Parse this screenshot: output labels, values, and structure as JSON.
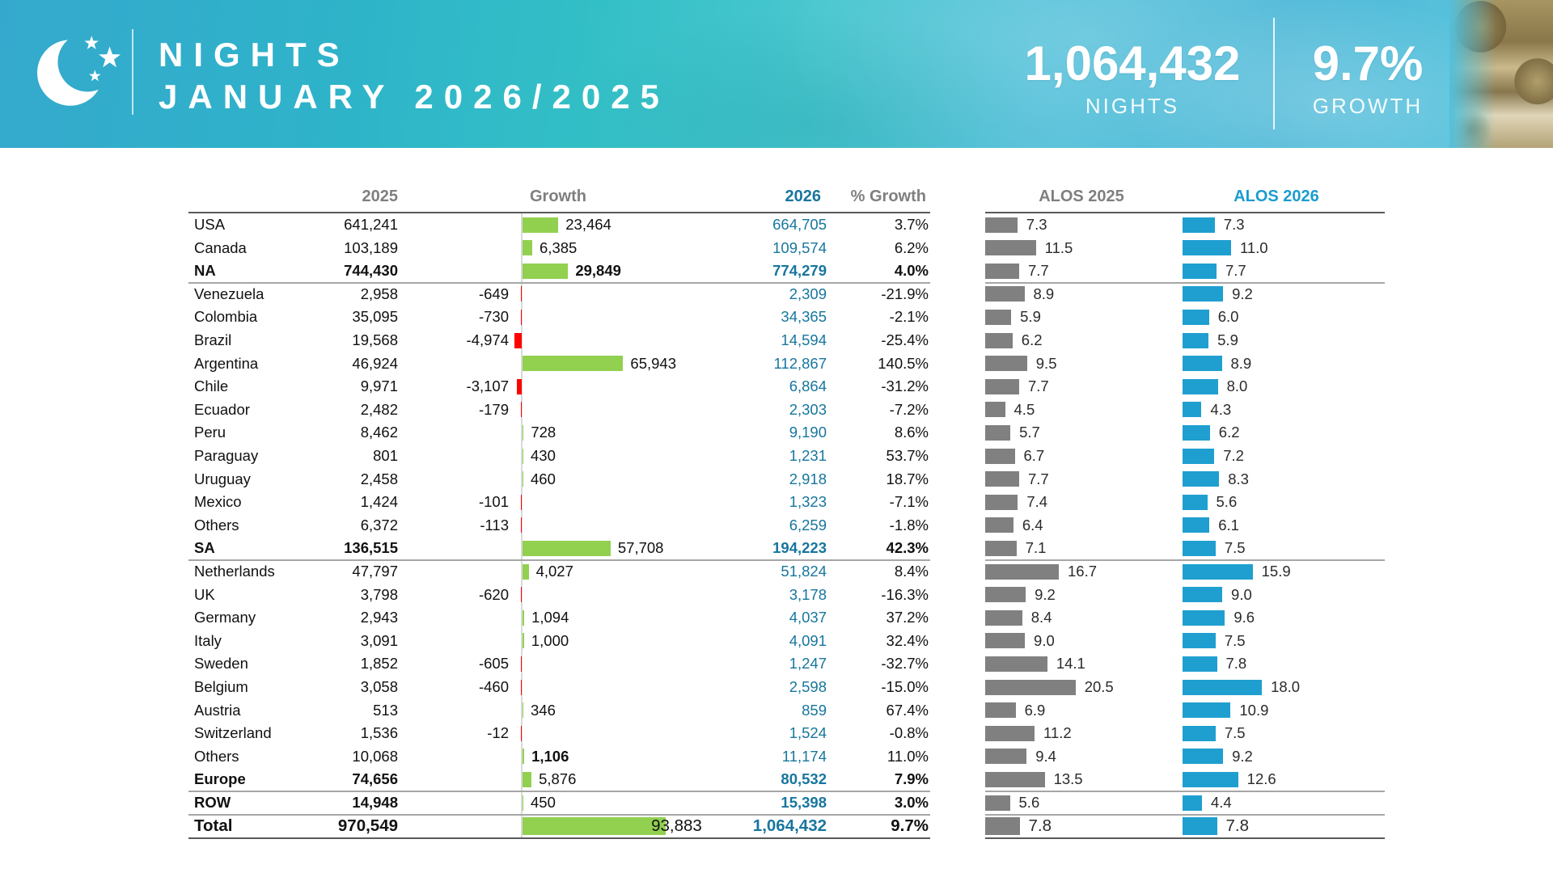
{
  "header": {
    "logo": "moon-stars-icon",
    "title_line1": "NIGHTS",
    "title_line2": "JANUARY 2026/2025",
    "total_nights": "1,064,432",
    "total_nights_label": "NIGHTS",
    "growth_pct": "9.7%",
    "growth_pct_label": "GROWTH"
  },
  "colors": {
    "banner_teal": "#35aacd",
    "growth_positive_bar": "#92d050",
    "growth_negative_bar": "#ff0000",
    "alos_2025_bar": "#808080",
    "alos_2026_bar": "#1f9fd0",
    "value_2026_text": "#17769e",
    "column_header_text": "#7f7f7f",
    "alos_2026_header_text": "#1b9cd0",
    "rule_dark": "#595959",
    "rule_light": "#a6a6a6"
  },
  "chart_data": {
    "type": "table",
    "title": "Nights January 2026/2025",
    "columns": [
      "2025",
      "Growth",
      "2026",
      "% Growth",
      "ALOS 2025",
      "ALOS 2026"
    ],
    "rows": [
      {
        "country": "USA",
        "nights_2025": "641,241",
        "growth": 23464,
        "growth_label": "23,464",
        "nights_2026": "664,705",
        "pct_growth": "3.7%",
        "alos_2025": "7.3",
        "alos_2026": "7.3"
      },
      {
        "country": "Canada",
        "nights_2025": "103,189",
        "growth": 6385,
        "growth_label": "6,385",
        "nights_2026": "109,574",
        "pct_growth": "6.2%",
        "alos_2025": "11.5",
        "alos_2026": "11.0"
      },
      {
        "country": "NA",
        "nights_2025": "744,430",
        "growth": 29849,
        "growth_label": "29,849",
        "nights_2026": "774,279",
        "pct_growth": "4.0%",
        "alos_2025": "7.7",
        "alos_2026": "7.7",
        "bold": true,
        "growth_bold": true,
        "rule_after": true
      },
      {
        "country": "Venezuela",
        "nights_2025": "2,958",
        "growth": -649,
        "growth_label": "-649",
        "nights_2026": "2,309",
        "pct_growth": "-21.9%",
        "alos_2025": "8.9",
        "alos_2026": "9.2"
      },
      {
        "country": "Colombia",
        "nights_2025": "35,095",
        "growth": -730,
        "growth_label": "-730",
        "nights_2026": "34,365",
        "pct_growth": "-2.1%",
        "alos_2025": "5.9",
        "alos_2026": "6.0"
      },
      {
        "country": "Brazil",
        "nights_2025": "19,568",
        "growth": -4974,
        "growth_label": "-4,974",
        "nights_2026": "14,594",
        "pct_growth": "-25.4%",
        "alos_2025": "6.2",
        "alos_2026": "5.9"
      },
      {
        "country": "Argentina",
        "nights_2025": "46,924",
        "growth": 65943,
        "growth_label": "65,943",
        "nights_2026": "112,867",
        "pct_growth": "140.5%",
        "alos_2025": "9.5",
        "alos_2026": "8.9"
      },
      {
        "country": "Chile",
        "nights_2025": "9,971",
        "growth": -3107,
        "growth_label": "-3,107",
        "nights_2026": "6,864",
        "pct_growth": "-31.2%",
        "alos_2025": "7.7",
        "alos_2026": "8.0"
      },
      {
        "country": "Ecuador",
        "nights_2025": "2,482",
        "growth": -179,
        "growth_label": "-179",
        "nights_2026": "2,303",
        "pct_growth": "-7.2%",
        "alos_2025": "4.5",
        "alos_2026": "4.3"
      },
      {
        "country": "Peru",
        "nights_2025": "8,462",
        "growth": 728,
        "growth_label": "728",
        "nights_2026": "9,190",
        "pct_growth": "8.6%",
        "alos_2025": "5.7",
        "alos_2026": "6.2"
      },
      {
        "country": "Paraguay",
        "nights_2025": "801",
        "growth": 430,
        "growth_label": "430",
        "nights_2026": "1,231",
        "pct_growth": "53.7%",
        "alos_2025": "6.7",
        "alos_2026": "7.2"
      },
      {
        "country": "Uruguay",
        "nights_2025": "2,458",
        "growth": 460,
        "growth_label": "460",
        "nights_2026": "2,918",
        "pct_growth": "18.7%",
        "alos_2025": "7.7",
        "alos_2026": "8.3"
      },
      {
        "country": "Mexico",
        "nights_2025": "1,424",
        "growth": -101,
        "growth_label": "-101",
        "nights_2026": "1,323",
        "pct_growth": "-7.1%",
        "alos_2025": "7.4",
        "alos_2026": "5.6"
      },
      {
        "country": "Others",
        "nights_2025": "6,372",
        "growth": -113,
        "growth_label": "-113",
        "nights_2026": "6,259",
        "pct_growth": "-1.8%",
        "alos_2025": "6.4",
        "alos_2026": "6.1"
      },
      {
        "country": "SA",
        "nights_2025": "136,515",
        "growth": 57708,
        "growth_label": "57,708",
        "nights_2026": "194,223",
        "pct_growth": "42.3%",
        "alos_2025": "7.1",
        "alos_2026": "7.5",
        "bold": true,
        "rule_after": true
      },
      {
        "country": "Netherlands",
        "nights_2025": "47,797",
        "growth": 4027,
        "growth_label": "4,027",
        "nights_2026": "51,824",
        "pct_growth": "8.4%",
        "alos_2025": "16.7",
        "alos_2026": "15.9"
      },
      {
        "country": "UK",
        "nights_2025": "3,798",
        "growth": -620,
        "growth_label": "-620",
        "nights_2026": "3,178",
        "pct_growth": "-16.3%",
        "alos_2025": "9.2",
        "alos_2026": "9.0"
      },
      {
        "country": "Germany",
        "nights_2025": "2,943",
        "growth": 1094,
        "growth_label": "1,094",
        "nights_2026": "4,037",
        "pct_growth": "37.2%",
        "alos_2025": "8.4",
        "alos_2026": "9.6"
      },
      {
        "country": "Italy",
        "nights_2025": "3,091",
        "growth": 1000,
        "growth_label": "1,000",
        "nights_2026": "4,091",
        "pct_growth": "32.4%",
        "alos_2025": "9.0",
        "alos_2026": "7.5"
      },
      {
        "country": "Sweden",
        "nights_2025": "1,852",
        "growth": -605,
        "growth_label": "-605",
        "nights_2026": "1,247",
        "pct_growth": "-32.7%",
        "alos_2025": "14.1",
        "alos_2026": "7.8"
      },
      {
        "country": "Belgium",
        "nights_2025": "3,058",
        "growth": -460,
        "growth_label": "-460",
        "nights_2026": "2,598",
        "pct_growth": "-15.0%",
        "alos_2025": "20.5",
        "alos_2026": "18.0"
      },
      {
        "country": "Austria",
        "nights_2025": "513",
        "growth": 346,
        "growth_label": "346",
        "nights_2026": "859",
        "pct_growth": "67.4%",
        "alos_2025": "6.9",
        "alos_2026": "10.9"
      },
      {
        "country": "Switzerland",
        "nights_2025": "1,536",
        "growth": -12,
        "growth_label": "-12",
        "nights_2026": "1,524",
        "pct_growth": "-0.8%",
        "alos_2025": "11.2",
        "alos_2026": "7.5"
      },
      {
        "country": "Others",
        "nights_2025": "10,068",
        "growth": 1106,
        "growth_label": "1,106",
        "nights_2026": "11,174",
        "pct_growth": "11.0%",
        "alos_2025": "9.4",
        "alos_2026": "9.2",
        "growth_bold": true
      },
      {
        "country": "Europe",
        "nights_2025": "74,656",
        "growth": 5876,
        "growth_label": "5,876",
        "nights_2026": "80,532",
        "pct_growth": "7.9%",
        "alos_2025": "13.5",
        "alos_2026": "12.6",
        "bold": true,
        "rule_after": true
      },
      {
        "country": "ROW",
        "nights_2025": "14,948",
        "growth": 450,
        "growth_label": "450",
        "nights_2026": "15,398",
        "pct_growth": "3.0%",
        "alos_2025": "5.6",
        "alos_2026": "4.4",
        "bold": true,
        "rule_after": true
      },
      {
        "country": "Total",
        "nights_2025": "970,549",
        "growth": 93883,
        "growth_label": "93,883",
        "nights_2026": "1,064,432",
        "pct_growth": "9.7%",
        "alos_2025": "7.8",
        "alos_2026": "7.8",
        "bold": true,
        "total": true,
        "label_shift": -27
      }
    ]
  }
}
